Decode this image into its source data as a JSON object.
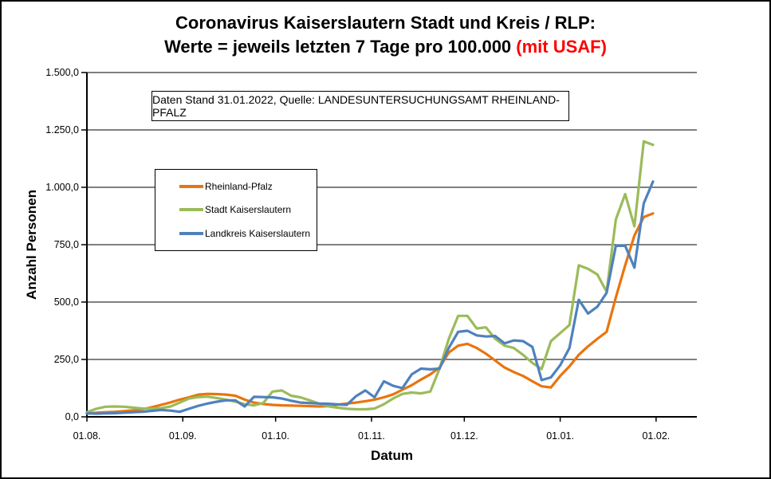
{
  "title": {
    "line1": "Coronavirus Kaiserslautern Stadt und Kreis / RLP:",
    "line2_black": "Werte = jeweils letzten 7 Tage pro 100.000 ",
    "line2_red": "(mit USAF)"
  },
  "info_box": {
    "text": "Daten Stand 31.01.2022, Quelle: LANDESUNTERSUCHUNGSAMT RHEINLAND-PFALZ"
  },
  "chart_data": {
    "type": "line",
    "title": "Coronavirus Kaiserslautern Stadt und Kreis / RLP: Werte = jeweils letzten 7 Tage pro 100.000 (mit USAF)",
    "xlabel": "Datum",
    "ylabel": "Anzahl Personen",
    "ylim": [
      0,
      1500
    ],
    "grid": true,
    "legend_position": "inside-left",
    "y_ticks": [
      {
        "label": "0,0",
        "value": 0
      },
      {
        "label": "250,0",
        "value": 250
      },
      {
        "label": "500,0",
        "value": 500
      },
      {
        "label": "750,0",
        "value": 750
      },
      {
        "label": "1.000,0",
        "value": 1000
      },
      {
        "label": "1.250,0",
        "value": 1250
      },
      {
        "label": "1.500,0",
        "value": 1500
      }
    ],
    "x_ticks": [
      {
        "label": "01.08.",
        "day": 0
      },
      {
        "label": "01.09.",
        "day": 31
      },
      {
        "label": "01.10.",
        "day": 61
      },
      {
        "label": "01.11.",
        "day": 92
      },
      {
        "label": "01.12.",
        "day": 122
      },
      {
        "label": "01.01.",
        "day": 153
      },
      {
        "label": "01.02.",
        "day": 184
      }
    ],
    "x_span_days": 183,
    "x": [
      "01.08",
      "04.08",
      "07.08",
      "10.08",
      "13.08",
      "16.08",
      "19.08",
      "22.08",
      "25.08",
      "28.08",
      "31.08",
      "03.09",
      "06.09",
      "09.09",
      "12.09",
      "15.09",
      "18.09",
      "21.09",
      "24.09",
      "27.09",
      "30.09",
      "03.10",
      "06.10",
      "09.10",
      "12.10",
      "15.10",
      "18.10",
      "21.10",
      "24.10",
      "27.10",
      "30.10",
      "02.11",
      "05.11",
      "08.11",
      "11.11",
      "14.11",
      "17.11",
      "20.11",
      "23.11",
      "26.11",
      "29.11",
      "02.12",
      "05.12",
      "08.12",
      "11.12",
      "14.12",
      "17.12",
      "20.12",
      "23.12",
      "26.12",
      "29.12",
      "01.01",
      "04.01",
      "07.01",
      "10.01",
      "13.01",
      "16.01",
      "19.01",
      "22.01",
      "25.01",
      "28.01",
      "31.01"
    ],
    "series": [
      {
        "name": "Rheinland-Pfalz",
        "color": "#E8750E",
        "values": [
          15,
          18,
          20,
          22,
          25,
          28,
          33,
          42,
          52,
          63,
          75,
          85,
          97,
          100,
          99,
          97,
          92,
          75,
          62,
          56,
          52,
          50,
          49,
          48,
          47,
          45,
          47,
          53,
          58,
          62,
          68,
          75,
          85,
          98,
          118,
          138,
          162,
          185,
          215,
          280,
          310,
          318,
          300,
          275,
          245,
          215,
          195,
          178,
          155,
          133,
          128,
          178,
          220,
          270,
          307,
          340,
          370,
          520,
          660,
          790,
          870,
          886
        ]
      },
      {
        "name": "Stadt Kaiserslautern",
        "color": "#9BBB59",
        "values": [
          20,
          35,
          44,
          45,
          44,
          40,
          36,
          36,
          38,
          45,
          62,
          80,
          86,
          88,
          82,
          75,
          66,
          55,
          50,
          60,
          110,
          115,
          92,
          85,
          72,
          58,
          46,
          40,
          35,
          33,
          33,
          36,
          55,
          80,
          100,
          106,
          102,
          110,
          210,
          340,
          440,
          440,
          385,
          390,
          340,
          310,
          300,
          270,
          235,
          208,
          330,
          365,
          400,
          660,
          645,
          620,
          545,
          860,
          970,
          830,
          1200,
          1185
        ]
      },
      {
        "name": "Landkreis Kaiserslautern",
        "color": "#4F81BD",
        "values": [
          15,
          14,
          15,
          16,
          18,
          20,
          22,
          26,
          30,
          27,
          22,
          35,
          48,
          58,
          66,
          72,
          72,
          45,
          87,
          86,
          85,
          80,
          70,
          62,
          60,
          58,
          57,
          54,
          52,
          90,
          115,
          85,
          155,
          135,
          125,
          185,
          210,
          207,
          210,
          300,
          370,
          375,
          355,
          350,
          352,
          320,
          333,
          330,
          305,
          160,
          172,
          225,
          300,
          510,
          450,
          480,
          540,
          745,
          745,
          650,
          930,
          1025
        ]
      }
    ]
  }
}
